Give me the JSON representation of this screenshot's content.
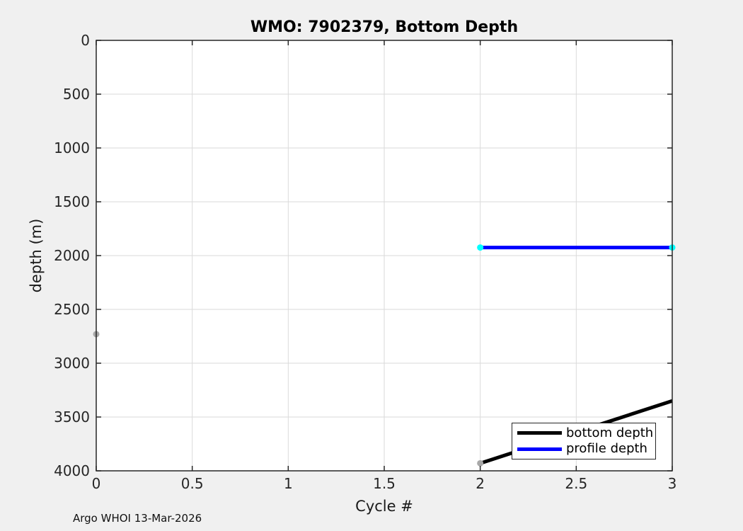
{
  "window": {
    "background_color": "#f0f0f0",
    "plot_background_color": "#ffffff",
    "grid_color": "#dadada",
    "axes_color": "#262626",
    "tick_label_color": "#262626"
  },
  "chart_data": {
    "type": "line",
    "title": "WMO: 7902379, Bottom Depth",
    "xlabel": "Cycle #",
    "ylabel": "depth (m)",
    "xlim": [
      0,
      3
    ],
    "ylim": [
      0,
      4000
    ],
    "y_axis_reversed": true,
    "grid": true,
    "x_ticks": [
      0,
      0.5,
      1,
      1.5,
      2,
      2.5,
      3
    ],
    "x_tick_labels": [
      "0",
      "0.5",
      "1",
      "1.5",
      "2",
      "2.5",
      "3"
    ],
    "y_ticks": [
      0,
      500,
      1000,
      1500,
      2000,
      2500,
      3000,
      3500,
      4000
    ],
    "y_tick_labels": [
      "0",
      "500",
      "1000",
      "1500",
      "2000",
      "2500",
      "3000",
      "3500",
      "4000"
    ],
    "series": [
      {
        "name": "bottom depth",
        "color": "#000000",
        "line_width": 5,
        "x": [
          2,
          3
        ],
        "y": [
          3930,
          3350
        ]
      },
      {
        "name": "profile depth",
        "color": "#0000ff",
        "line_width": 5,
        "x": [
          2,
          3
        ],
        "y": [
          1925,
          1925
        ],
        "marker_color": "#00ffff",
        "marker_size": 9
      }
    ],
    "extra_markers": [
      {
        "x": 0,
        "y": 2730,
        "color": "#a8a8a8",
        "size": 9
      },
      {
        "x": 2,
        "y": 3930,
        "color": "#a8a8a8",
        "size": 9
      }
    ],
    "legend": {
      "position": "bottom-right",
      "entries": [
        "bottom depth",
        "profile depth"
      ]
    }
  },
  "footer": {
    "text": "Argo WHOI 13-Mar-2026"
  }
}
